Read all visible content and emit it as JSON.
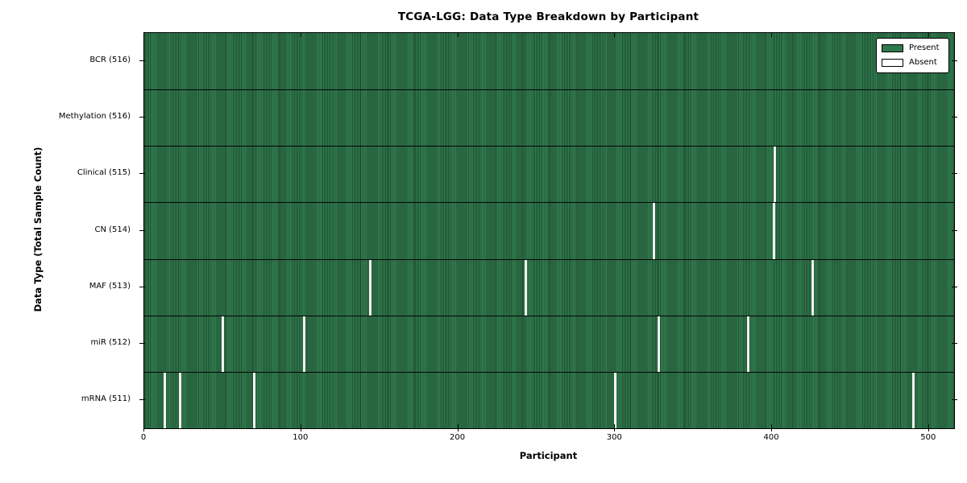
{
  "chart_data": {
    "type": "heatmap",
    "title": "TCGA-LGG: Data Type Breakdown by Participant",
    "xlabel": "Participant",
    "ylabel": "Data Type (Total Sample Count)",
    "x_ticks": [
      0,
      100,
      200,
      300,
      400,
      500
    ],
    "x_range": [
      0,
      516
    ],
    "n_participants": 516,
    "grid": false,
    "legend_position": "upper right",
    "legend": [
      {
        "label": "Present",
        "color": "#2e7a4c"
      },
      {
        "label": "Absent",
        "color": "#ffffff"
      }
    ],
    "colors": {
      "present": "#317c4e",
      "present_dark": "#1e5134",
      "absent": "#f2f2f0",
      "border": "#000000"
    },
    "rows": [
      {
        "label": "BCR (516)",
        "data_type": "BCR",
        "present_count": 516,
        "absent_participants": []
      },
      {
        "label": "Methylation (516)",
        "data_type": "Methylation",
        "present_count": 516,
        "absent_participants": []
      },
      {
        "label": "Clinical (515)",
        "data_type": "Clinical",
        "present_count": 515,
        "absent_participants": [
          402
        ]
      },
      {
        "label": "CN (514)",
        "data_type": "CN",
        "present_count": 514,
        "absent_participants": [
          325,
          401
        ]
      },
      {
        "label": "MAF (513)",
        "data_type": "MAF",
        "present_count": 513,
        "absent_participants": [
          144,
          243,
          426
        ]
      },
      {
        "label": "miR (512)",
        "data_type": "miR",
        "present_count": 512,
        "absent_participants": [
          50,
          102,
          328,
          385
        ]
      },
      {
        "label": "mRNA (511)",
        "data_type": "mRNA",
        "present_count": 511,
        "absent_participants": [
          13,
          23,
          70,
          300,
          490
        ]
      }
    ]
  }
}
